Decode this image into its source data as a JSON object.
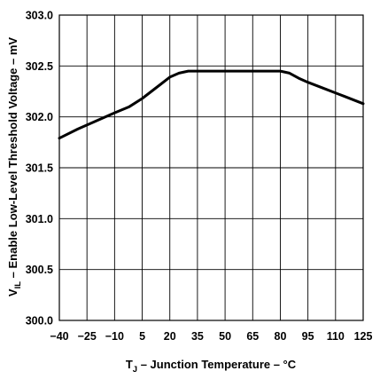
{
  "chart_data": {
    "type": "line",
    "title": "",
    "xlabel": {
      "symbol": "T",
      "subscript": "J",
      "text": " – Junction Temperature – °C"
    },
    "ylabel": {
      "symbol": "V",
      "subscript": "IL",
      "text": " – Enable Low-Level Threshold Voltage – mV"
    },
    "xlim": [
      -40,
      125
    ],
    "ylim": [
      300.0,
      303.0
    ],
    "grid": true,
    "x_tick_labels": [
      "−40",
      "−25",
      "−10",
      "5",
      "20",
      "35",
      "50",
      "65",
      "80",
      "95",
      "110",
      "125"
    ],
    "y_tick_labels": [
      "303.0",
      "302.5",
      "302.0",
      "301.5",
      "301.0",
      "300.5",
      "300.0"
    ],
    "series": [
      {
        "color": "#000000",
        "points": [
          [
            -40,
            301.79
          ],
          [
            -30,
            301.88
          ],
          [
            -20,
            301.96
          ],
          [
            -10,
            302.04
          ],
          [
            -2,
            302.1
          ],
          [
            5,
            302.18
          ],
          [
            10,
            302.25
          ],
          [
            15,
            302.32
          ],
          [
            20,
            302.39
          ],
          [
            25,
            302.43
          ],
          [
            30,
            302.45
          ],
          [
            35,
            302.45
          ],
          [
            50,
            302.45
          ],
          [
            65,
            302.45
          ],
          [
            80,
            302.45
          ],
          [
            85,
            302.43
          ],
          [
            90,
            302.38
          ],
          [
            95,
            302.34
          ],
          [
            105,
            302.27
          ],
          [
            115,
            302.2
          ],
          [
            125,
            302.13
          ]
        ]
      }
    ]
  }
}
